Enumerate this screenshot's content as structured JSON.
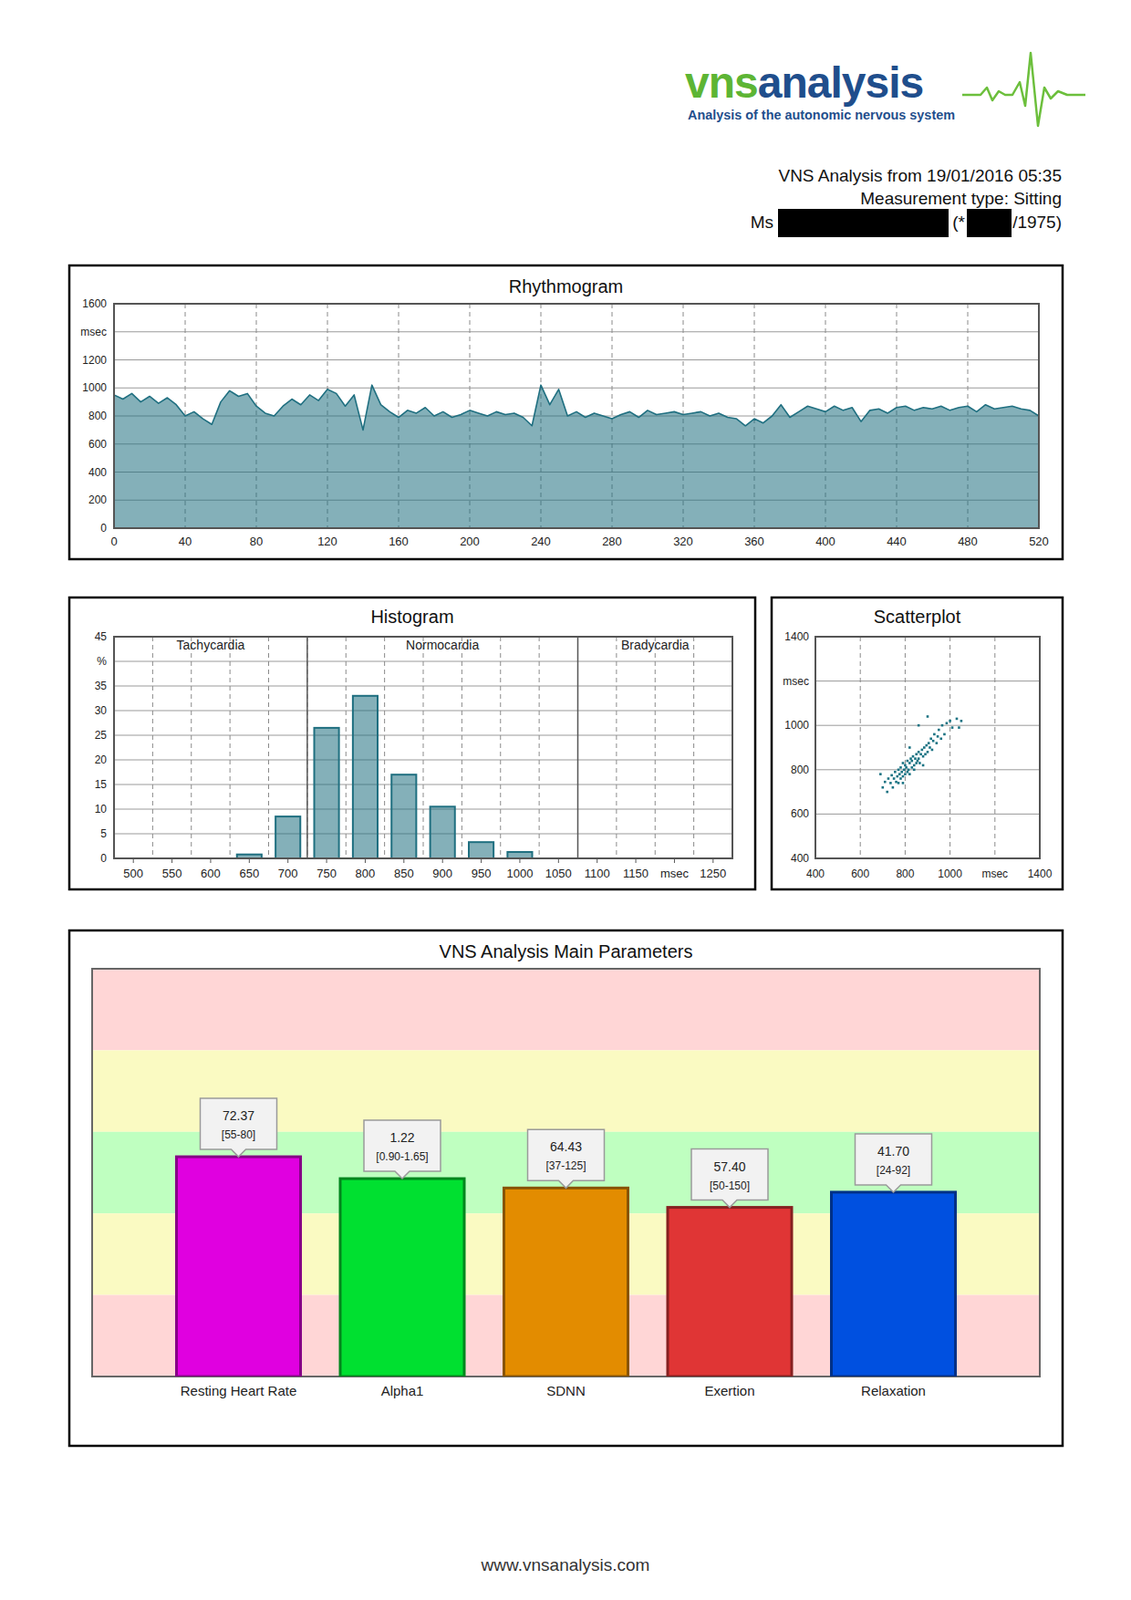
{
  "page": {
    "logo_vns": "vns",
    "logo_analysis": "analysis",
    "tagline": "Analysis of the autonomic nervous system",
    "report_title": "VNS Analysis from 19/01/2016 05:35",
    "measurement": "Measurement type: Sitting",
    "salutation": "Ms",
    "birth_prefix": "(*",
    "birth_suffix": "/1975)",
    "footer": "www.vnsanalysis.com"
  },
  "chart_data": [
    {
      "type": "area",
      "title": "Rhythmogram",
      "grid": true,
      "x": [
        0,
        5,
        10,
        15,
        20,
        25,
        30,
        35,
        40,
        45,
        50,
        55,
        60,
        65,
        70,
        75,
        80,
        85,
        90,
        95,
        100,
        105,
        110,
        115,
        120,
        125,
        130,
        135,
        140,
        145,
        150,
        155,
        160,
        165,
        170,
        175,
        180,
        185,
        190,
        195,
        200,
        205,
        210,
        215,
        220,
        225,
        230,
        235,
        240,
        245,
        250,
        255,
        260,
        265,
        270,
        275,
        280,
        285,
        290,
        295,
        300,
        305,
        310,
        315,
        320,
        325,
        330,
        335,
        340,
        345,
        350,
        355,
        360,
        365,
        370,
        375,
        380,
        385,
        390,
        395,
        400,
        405,
        410,
        415,
        420,
        425,
        430,
        435,
        440,
        445,
        450,
        455,
        460,
        465,
        470,
        475,
        480,
        485,
        490,
        495,
        500,
        505,
        510,
        515,
        520
      ],
      "series": [
        {
          "color": "#1f6f80",
          "values": [
            950,
            920,
            960,
            900,
            940,
            890,
            930,
            880,
            800,
            830,
            780,
            740,
            900,
            980,
            940,
            960,
            870,
            820,
            800,
            870,
            920,
            880,
            950,
            910,
            990,
            960,
            870,
            950,
            700,
            1020,
            880,
            830,
            790,
            840,
            820,
            860,
            800,
            830,
            790,
            810,
            840,
            820,
            800,
            830,
            810,
            820,
            790,
            730,
            1020,
            880,
            990,
            800,
            830,
            790,
            820,
            800,
            780,
            810,
            830,
            790,
            840,
            810,
            820,
            830,
            810,
            820,
            830,
            800,
            820,
            790,
            780,
            730,
            780,
            750,
            800,
            880,
            790,
            830,
            870,
            850,
            830,
            870,
            840,
            860,
            760,
            840,
            850,
            820,
            860,
            870,
            840,
            860,
            850,
            870,
            840,
            860,
            870,
            830,
            880,
            850,
            860,
            870,
            850,
            840,
            800
          ]
        }
      ],
      "xlim": [
        0,
        520
      ],
      "xticks": [
        0,
        40,
        80,
        120,
        160,
        200,
        240,
        280,
        320,
        360,
        400,
        440,
        480,
        520
      ],
      "ylim": [
        0,
        1600
      ],
      "yticks": [
        0,
        200,
        400,
        600,
        800,
        1000,
        1200,
        {
          "value": 1400,
          "label": "msec"
        },
        1600
      ]
    },
    {
      "type": "histogram",
      "title": "Histogram",
      "grid": true,
      "color": "#1f6f80",
      "bins": [
        625,
        675,
        725,
        775,
        825,
        875,
        925,
        975,
        1025
      ],
      "values": [
        0.8,
        8.5,
        26.5,
        33,
        17,
        10.5,
        3.3,
        1.3
      ],
      "zones": [
        {
          "label": "Tachycardia",
          "from": 475,
          "to": 725
        },
        {
          "label": "Normocardia",
          "from": 725,
          "to": 1075
        },
        {
          "label": "Bradycardia",
          "from": 1075,
          "to": 1275
        }
      ],
      "xlim": [
        475,
        1275
      ],
      "xticks": [
        500,
        550,
        600,
        650,
        700,
        750,
        800,
        850,
        900,
        950,
        1000,
        1050,
        1100,
        1150,
        {
          "value": 1200,
          "label": "msec"
        },
        1250
      ],
      "ylim": [
        0,
        45
      ],
      "yticks": [
        0,
        5,
        10,
        15,
        20,
        25,
        30,
        35,
        {
          "value": 40,
          "label": "%"
        },
        45
      ]
    },
    {
      "type": "scatter",
      "title": "Scatterplot",
      "grid": true,
      "color": "#1a7383",
      "x": [
        700,
        710,
        720,
        725,
        735,
        740,
        745,
        750,
        755,
        760,
        765,
        770,
        770,
        775,
        780,
        780,
        785,
        790,
        790,
        795,
        800,
        800,
        805,
        810,
        810,
        815,
        820,
        820,
        825,
        830,
        830,
        835,
        840,
        840,
        845,
        850,
        850,
        855,
        860,
        860,
        865,
        870,
        875,
        880,
        885,
        890,
        895,
        900,
        905,
        910,
        915,
        920,
        925,
        930,
        940,
        945,
        950,
        960,
        965,
        975,
        985,
        1000,
        1010,
        1030,
        900,
        860,
        1040,
        1050,
        690,
        820,
        880,
        790
      ],
      "values": [
        720,
        745,
        700,
        760,
        740,
        775,
        720,
        760,
        790,
        745,
        770,
        800,
        740,
        780,
        760,
        810,
        790,
        770,
        830,
        800,
        780,
        820,
        810,
        790,
        840,
        800,
        830,
        780,
        850,
        810,
        840,
        860,
        820,
        800,
        850,
        830,
        870,
        840,
        880,
        850,
        830,
        870,
        890,
        860,
        900,
        870,
        910,
        880,
        920,
        900,
        940,
        890,
        930,
        960,
        920,
        950,
        980,
        940,
        1000,
        960,
        1010,
        1020,
        990,
        1030,
        1040,
        1000,
        990,
        1020,
        780,
        900,
        820,
        740
      ],
      "xlim": [
        400,
        1400
      ],
      "xticks": [
        400,
        600,
        800,
        1000,
        {
          "value": 1200,
          "label": "msec"
        },
        1400
      ],
      "ylim": [
        400,
        1400
      ],
      "yticks": [
        400,
        600,
        800,
        1000,
        {
          "value": 1200,
          "label": "msec"
        },
        1400
      ]
    },
    {
      "type": "bar",
      "title": "VNS Analysis Main Parameters",
      "data_labels": true,
      "tick_labels": "x",
      "categories": [
        "Resting Heart Rate",
        "Alpha1",
        "SDNN",
        "Exertion",
        "Relaxation"
      ],
      "values": [
        72.37,
        1.22,
        64.43,
        57.4,
        41.7
      ],
      "value_labels": [
        "72.37",
        "1.22",
        "64.43",
        "57.40",
        "41.70"
      ],
      "ranges": [
        [
          55,
          80
        ],
        [
          0.9,
          1.65
        ],
        [
          37,
          125
        ],
        [
          50,
          150
        ],
        [
          24,
          92
        ]
      ],
      "range_labels": [
        "[55-80]",
        "[0.90-1.65]",
        "[37-125]",
        "[50-150]",
        "[24-92]"
      ],
      "colors": [
        "#e000e0",
        "#00e030",
        "#e38c00",
        "#e03535",
        "#0050e0"
      ]
    }
  ]
}
